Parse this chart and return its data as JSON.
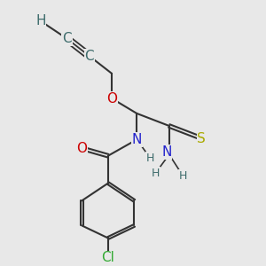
{
  "bg_color": "#e8e8e8",
  "colors": {
    "C": "#3d6b6b",
    "H": "#3d6b6b",
    "O": "#cc0000",
    "N": "#2222cc",
    "S": "#aaaa00",
    "Cl": "#33aa33",
    "bond": "#333333"
  },
  "fs_large": 11,
  "fs_small": 9
}
